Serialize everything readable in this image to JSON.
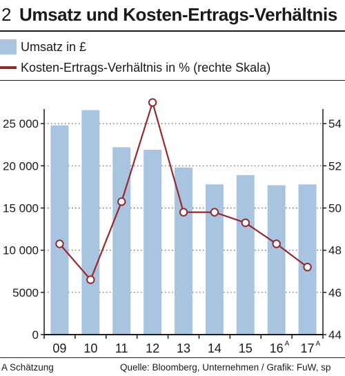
{
  "figure": {
    "number": "2",
    "title": "Umsatz und Kosten-Ertrags-Verhältnis"
  },
  "legend": {
    "bar_label": "Umsatz in £",
    "line_label": "Kosten-Ertrags-Verhältnis in % (rechte Skala)"
  },
  "footer": {
    "note": "A Schätzung",
    "source": "Quelle: Bloomberg, Unternehmen / Grafik: FuW, sp"
  },
  "colors": {
    "bar": "#a9c4e1",
    "line": "#93282d",
    "text": "#1a1a1a"
  },
  "chart_data": {
    "type": "bar",
    "categories": [
      "09",
      "10",
      "11",
      "12",
      "13",
      "14",
      "15",
      "16",
      "17"
    ],
    "category_superscripts": [
      "",
      "",
      "",
      "",
      "",
      "",
      "",
      "A",
      "A"
    ],
    "series": [
      {
        "type": "bar",
        "axis": "left",
        "values": [
          24800,
          26600,
          22200,
          21900,
          19800,
          17800,
          18900,
          17700,
          17800
        ]
      },
      {
        "type": "line",
        "axis": "right",
        "values": [
          48.3,
          46.6,
          50.3,
          55.0,
          49.8,
          49.8,
          49.3,
          48.3,
          47.2
        ]
      }
    ],
    "y_left": {
      "ylim": [
        0,
        30000
      ],
      "ticks": [
        0,
        5000,
        10000,
        15000,
        20000,
        25000
      ],
      "tick_labels": [
        "0",
        "5000",
        "10 000",
        "15 000",
        "20 000",
        "25 000"
      ]
    },
    "y_right": {
      "ylim": [
        44,
        56
      ],
      "ticks": [
        44,
        46,
        48,
        50,
        52,
        54
      ],
      "tick_labels": [
        "44",
        "46",
        "48",
        "50",
        "52",
        "54"
      ]
    },
    "grid": "horizontal dotted",
    "legend_placement": "top"
  }
}
